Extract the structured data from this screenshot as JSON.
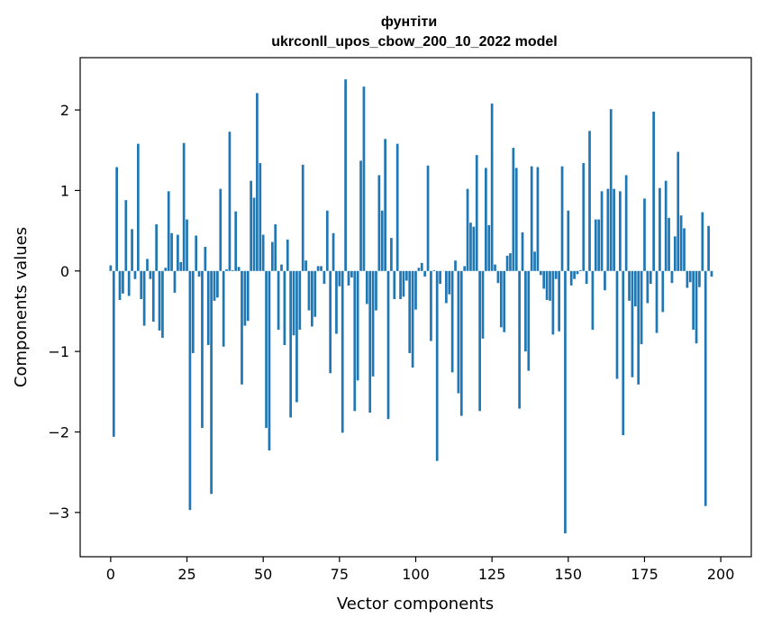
{
  "chart_data": {
    "type": "bar",
    "title": "фунтіти",
    "subtitle": "ukrconll_upos_cbow_200_10_2022 model",
    "xlabel": "Vector components",
    "ylabel": "Components values",
    "xlim": [
      -10,
      210
    ],
    "ylim": [
      -3.55,
      2.65
    ],
    "x_ticks": [
      0,
      25,
      50,
      75,
      100,
      125,
      150,
      175,
      200
    ],
    "y_ticks": [
      -3,
      -2,
      -1,
      0,
      1,
      2
    ],
    "y_tick_labels": [
      "−3",
      "−2",
      "−1",
      "0",
      "1",
      "2"
    ],
    "grid": false,
    "color": "#1f77b4",
    "values": [
      0.07,
      -2.06,
      1.29,
      -0.36,
      -0.28,
      0.88,
      -0.31,
      0.52,
      -0.1,
      1.58,
      -0.35,
      -0.68,
      0.15,
      -0.1,
      -0.63,
      0.58,
      -0.74,
      -0.83,
      0.04,
      0.99,
      0.47,
      -0.27,
      0.45,
      0.11,
      1.59,
      0.64,
      -2.97,
      -1.02,
      0.44,
      -0.07,
      -1.95,
      0.3,
      -0.92,
      -2.77,
      -0.37,
      -0.33,
      1.02,
      -0.94,
      0.02,
      1.73,
      0.01,
      0.74,
      0.05,
      -1.41,
      -0.68,
      -0.62,
      1.12,
      0.91,
      2.21,
      1.34,
      0.45,
      -1.95,
      -2.23,
      0.36,
      0.58,
      -0.73,
      0.08,
      -0.92,
      0.39,
      -1.82,
      -0.8,
      -1.63,
      -0.73,
      1.32,
      0.13,
      -0.49,
      -0.69,
      -0.57,
      0.06,
      0.06,
      -0.16,
      0.75,
      -1.27,
      0.47,
      -0.78,
      -0.19,
      -2.01,
      2.38,
      -0.18,
      -0.08,
      -1.74,
      -1.36,
      1.37,
      2.29,
      -0.41,
      -1.76,
      -1.31,
      -0.49,
      1.19,
      0.75,
      1.64,
      -1.84,
      0.41,
      -0.35,
      1.58,
      -0.35,
      -0.32,
      -0.12,
      -1.02,
      -1.2,
      -0.48,
      0.04,
      0.1,
      -0.07,
      1.31,
      -0.87,
      0.01,
      -2.36,
      -0.16,
      0.0,
      -0.4,
      -0.29,
      -1.26,
      0.13,
      -1.52,
      -1.8,
      0.06,
      1.02,
      0.6,
      0.55,
      1.44,
      -1.74,
      -0.84,
      1.28,
      0.57,
      2.08,
      0.08,
      -0.15,
      -0.7,
      -0.76,
      0.19,
      0.22,
      1.53,
      1.28,
      -1.71,
      0.48,
      -1.0,
      -1.24,
      1.3,
      0.24,
      1.29,
      -0.05,
      -0.22,
      -0.36,
      -0.37,
      -0.79,
      -0.1,
      -0.75,
      1.3,
      -3.26,
      0.75,
      -0.18,
      -0.1,
      -0.04,
      0.01,
      1.34,
      -0.16,
      1.74,
      -0.73,
      0.64,
      0.64,
      0.99,
      -0.24,
      1.02,
      2.01,
      1.02,
      -1.34,
      0.99,
      -2.04,
      1.19,
      -0.37,
      -1.32,
      -0.44,
      -1.41,
      -0.91,
      0.9,
      -0.4,
      -0.16,
      1.98,
      -0.77,
      1.03,
      -0.51,
      1.12,
      0.66,
      -0.15,
      0.43,
      1.48,
      0.69,
      0.53,
      -0.21,
      -0.14,
      -0.73,
      -0.9,
      -0.2,
      0.73,
      -2.92,
      0.56,
      -0.07
    ]
  }
}
